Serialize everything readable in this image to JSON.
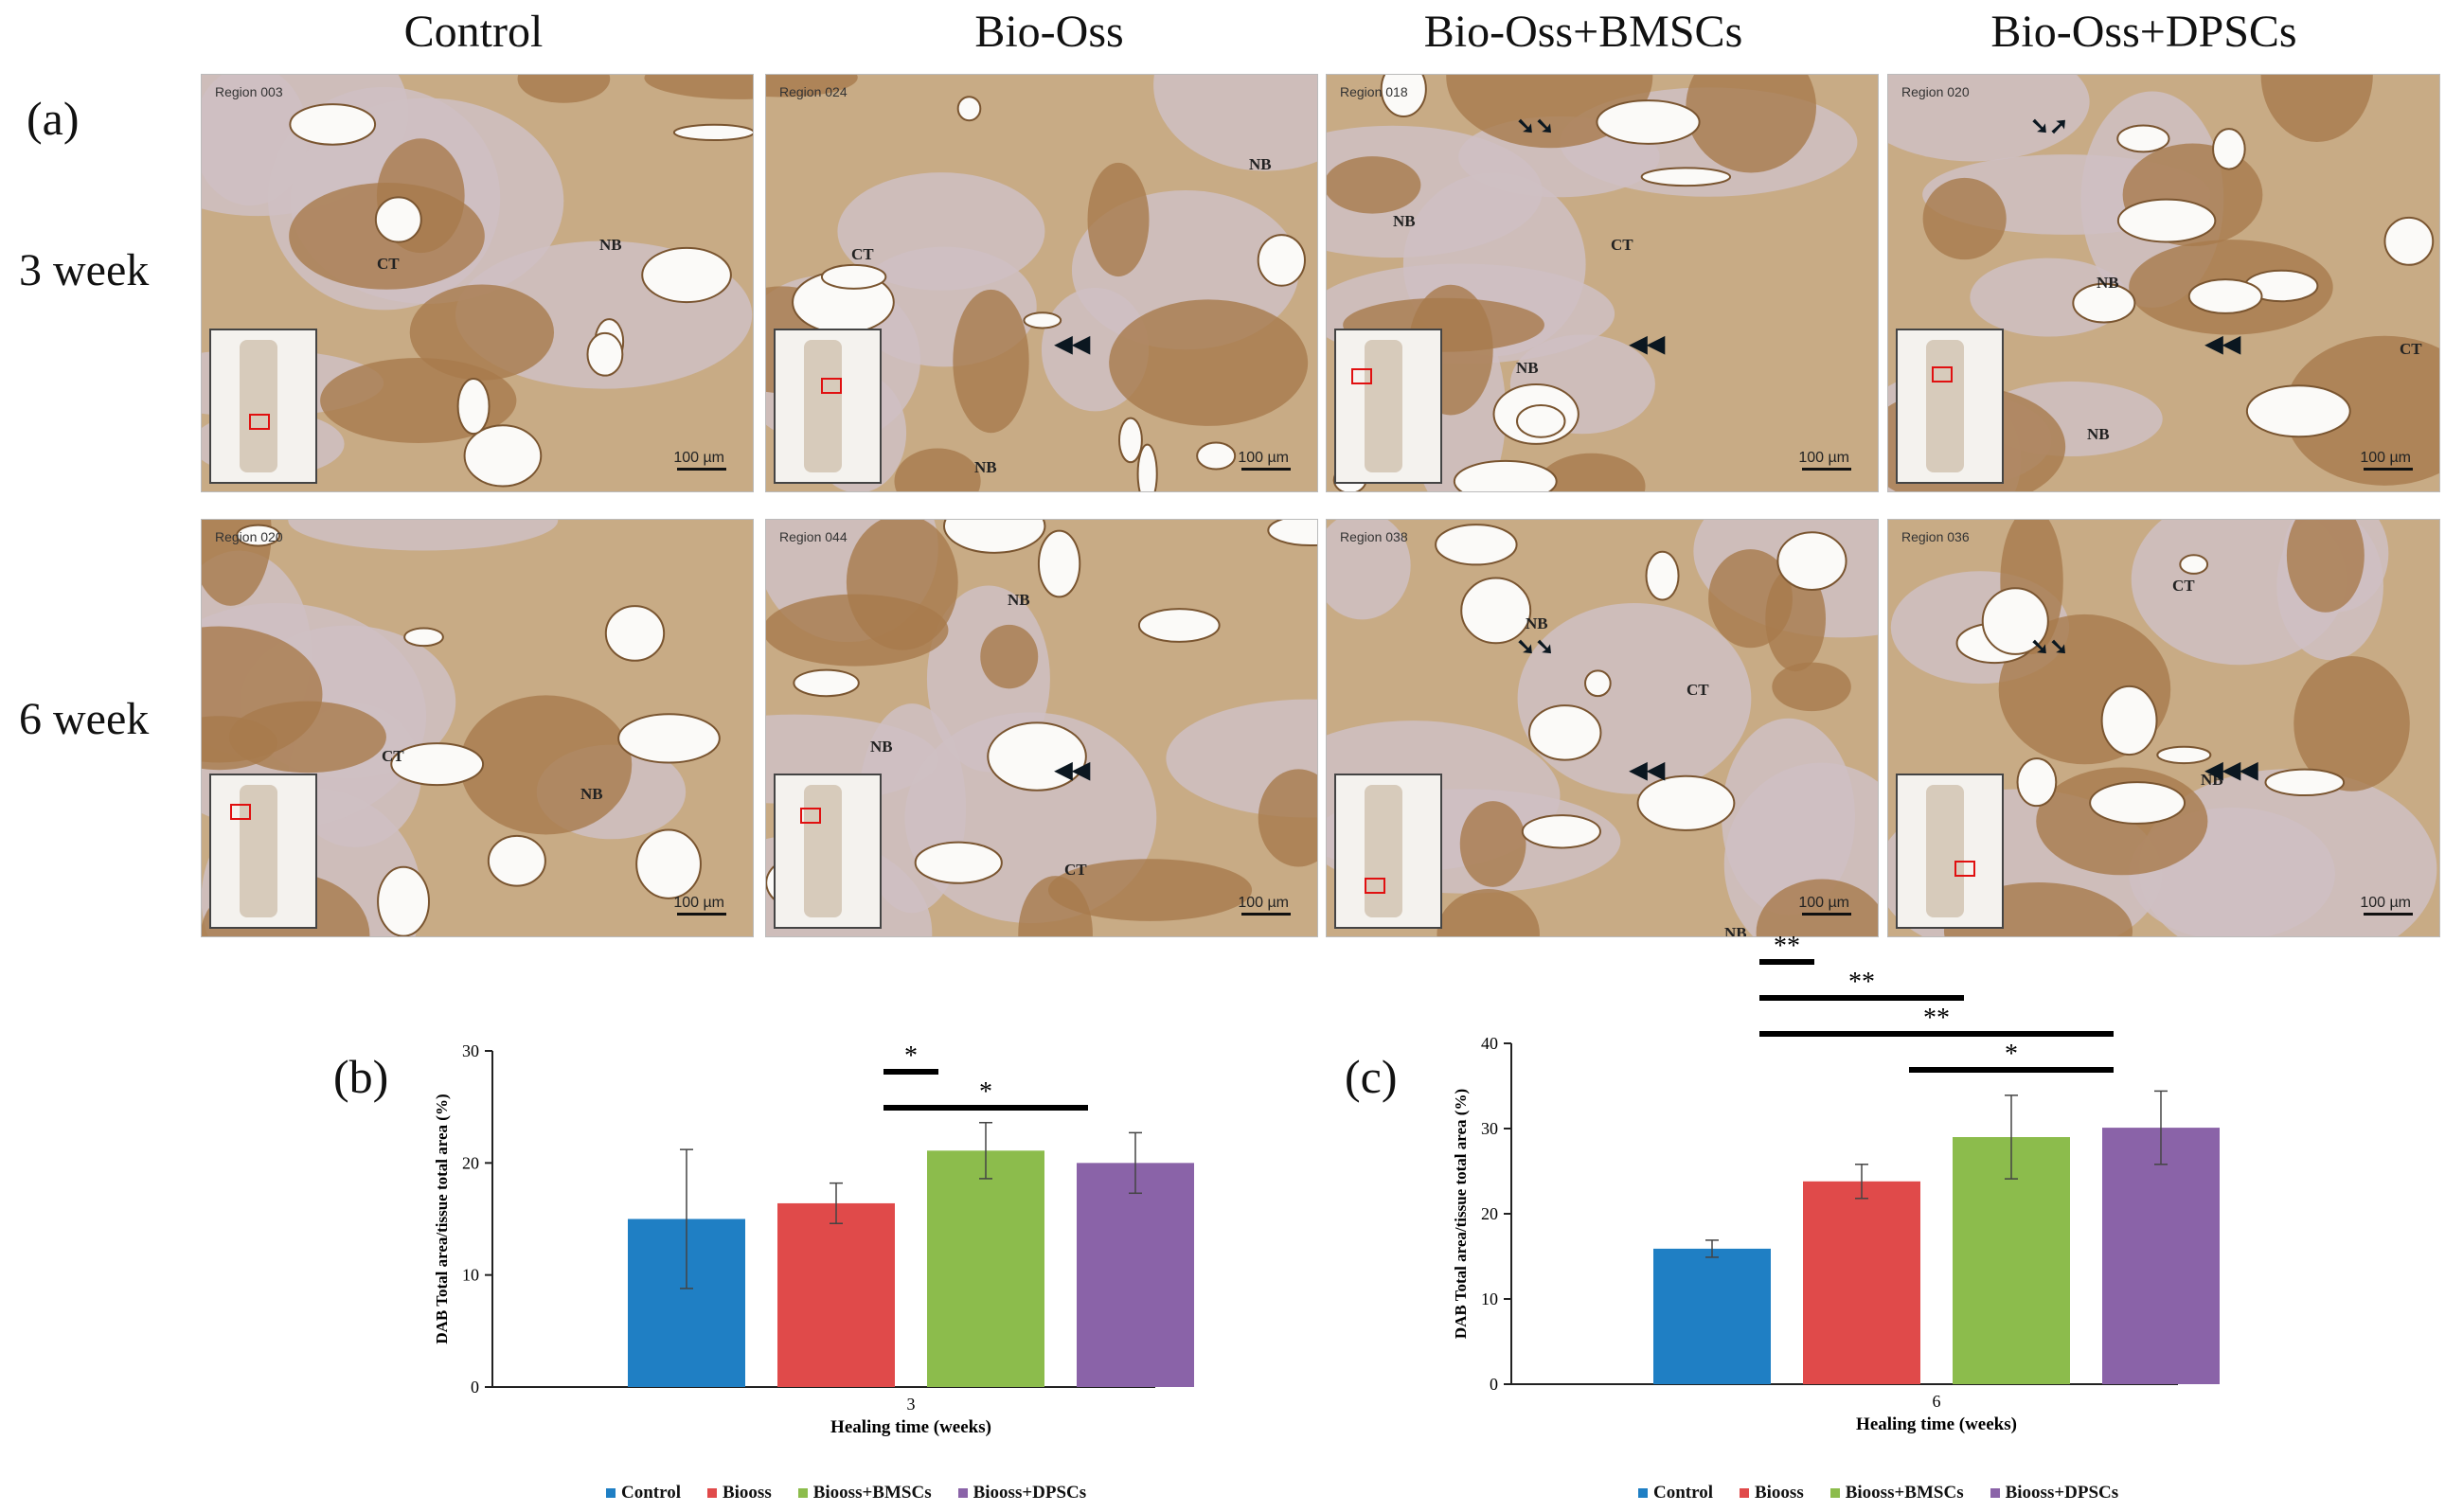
{
  "figure": {
    "column_titles": [
      "Control",
      "Bio-Oss",
      "Bio-Oss+BMSCs",
      "Bio-Oss+DPSCs"
    ],
    "panel_letters": {
      "a": "(a)",
      "b": "(b)",
      "c": "(c)"
    },
    "row_labels": [
      "3 week",
      "6 week"
    ],
    "micrographs": [
      {
        "region": "Region 003",
        "scale": "100 µm",
        "labels": [
          "CT",
          "NB"
        ],
        "arrows": "",
        "arrowheads": ""
      },
      {
        "region": "Region 024",
        "scale": "100 µm",
        "labels": [
          "CT",
          "NB",
          "NB"
        ],
        "arrows": "",
        "arrowheads": "◀◀"
      },
      {
        "region": "Region 018",
        "scale": "100 µm",
        "labels": [
          "NB",
          "CT",
          "NB"
        ],
        "arrows": "➘➘",
        "arrowheads": "◀◀"
      },
      {
        "region": "Region 020",
        "scale": "100 µm",
        "labels": [
          "NB",
          "CT",
          "NB"
        ],
        "arrows": "➘➚",
        "arrowheads": "◀◀"
      },
      {
        "region": "Region 020",
        "scale": "100 µm",
        "labels": [
          "CT",
          "NB"
        ],
        "arrows": "",
        "arrowheads": ""
      },
      {
        "region": "Region 044",
        "scale": "100 µm",
        "labels": [
          "NB",
          "NB",
          "CT"
        ],
        "arrows": "",
        "arrowheads": "◀◀"
      },
      {
        "region": "Region 038",
        "scale": "100 µm",
        "labels": [
          "NB",
          "CT",
          "NB"
        ],
        "arrows": "➘➘",
        "arrowheads": "◀◀"
      },
      {
        "region": "Region 036",
        "scale": "100 µm",
        "labels": [
          "CT",
          "NB"
        ],
        "arrows": "➘➘",
        "arrowheads": "◀◀◀"
      }
    ],
    "colors": {
      "Control": "#1f7fc4",
      "Biooss": "#e04a4a",
      "Biooss+BMSCs": "#8cbc4c",
      "Biooss+DPSCs": "#8a63a8"
    }
  },
  "chart_data": [
    {
      "type": "bar",
      "panel": "(b)",
      "categories": [
        "3"
      ],
      "series": [
        {
          "name": "Control",
          "values": [
            15.0
          ],
          "error": [
            6.2
          ]
        },
        {
          "name": "Biooss",
          "values": [
            16.4
          ],
          "error": [
            1.8
          ]
        },
        {
          "name": "Biooss+BMSCs",
          "values": [
            21.1
          ],
          "error": [
            2.5
          ]
        },
        {
          "name": "Biooss+DPSCs",
          "values": [
            20.0
          ],
          "error": [
            2.7
          ]
        }
      ],
      "xlabel": "Healing time (weeks)",
      "ylabel": "DAB Total area/tissue total area (%)",
      "ylim": [
        0,
        30
      ],
      "yticks": [
        "0",
        "10",
        "20",
        "30"
      ],
      "grid": false,
      "legend_position": "bottom",
      "significance": [
        {
          "from": "Biooss",
          "to": "Biooss+BMSCs",
          "label": "*"
        },
        {
          "from": "Biooss",
          "to": "Biooss+DPSCs",
          "label": "*"
        }
      ]
    },
    {
      "type": "bar",
      "panel": "(c)",
      "categories": [
        "6"
      ],
      "series": [
        {
          "name": "Control",
          "values": [
            15.9
          ],
          "error": [
            1.0
          ]
        },
        {
          "name": "Biooss",
          "values": [
            23.8
          ],
          "error": [
            2.0
          ]
        },
        {
          "name": "Biooss+BMSCs",
          "values": [
            29.0
          ],
          "error": [
            4.9
          ]
        },
        {
          "name": "Biooss+DPSCs",
          "values": [
            30.1
          ],
          "error": [
            4.3
          ]
        }
      ],
      "xlabel": "Healing time (weeks)",
      "ylabel": "DAB Total area/tissue total area (%)",
      "ylim": [
        0,
        40
      ],
      "yticks": [
        "0",
        "10",
        "20",
        "30",
        "40"
      ],
      "grid": false,
      "legend_position": "bottom",
      "significance": [
        {
          "from": "Control",
          "to": "Biooss",
          "label": "**"
        },
        {
          "from": "Control",
          "to": "Biooss+BMSCs",
          "label": "**"
        },
        {
          "from": "Control",
          "to": "Biooss+DPSCs",
          "label": "**"
        },
        {
          "from": "Biooss",
          "to": "Biooss+DPSCs",
          "label": "*"
        }
      ]
    }
  ]
}
